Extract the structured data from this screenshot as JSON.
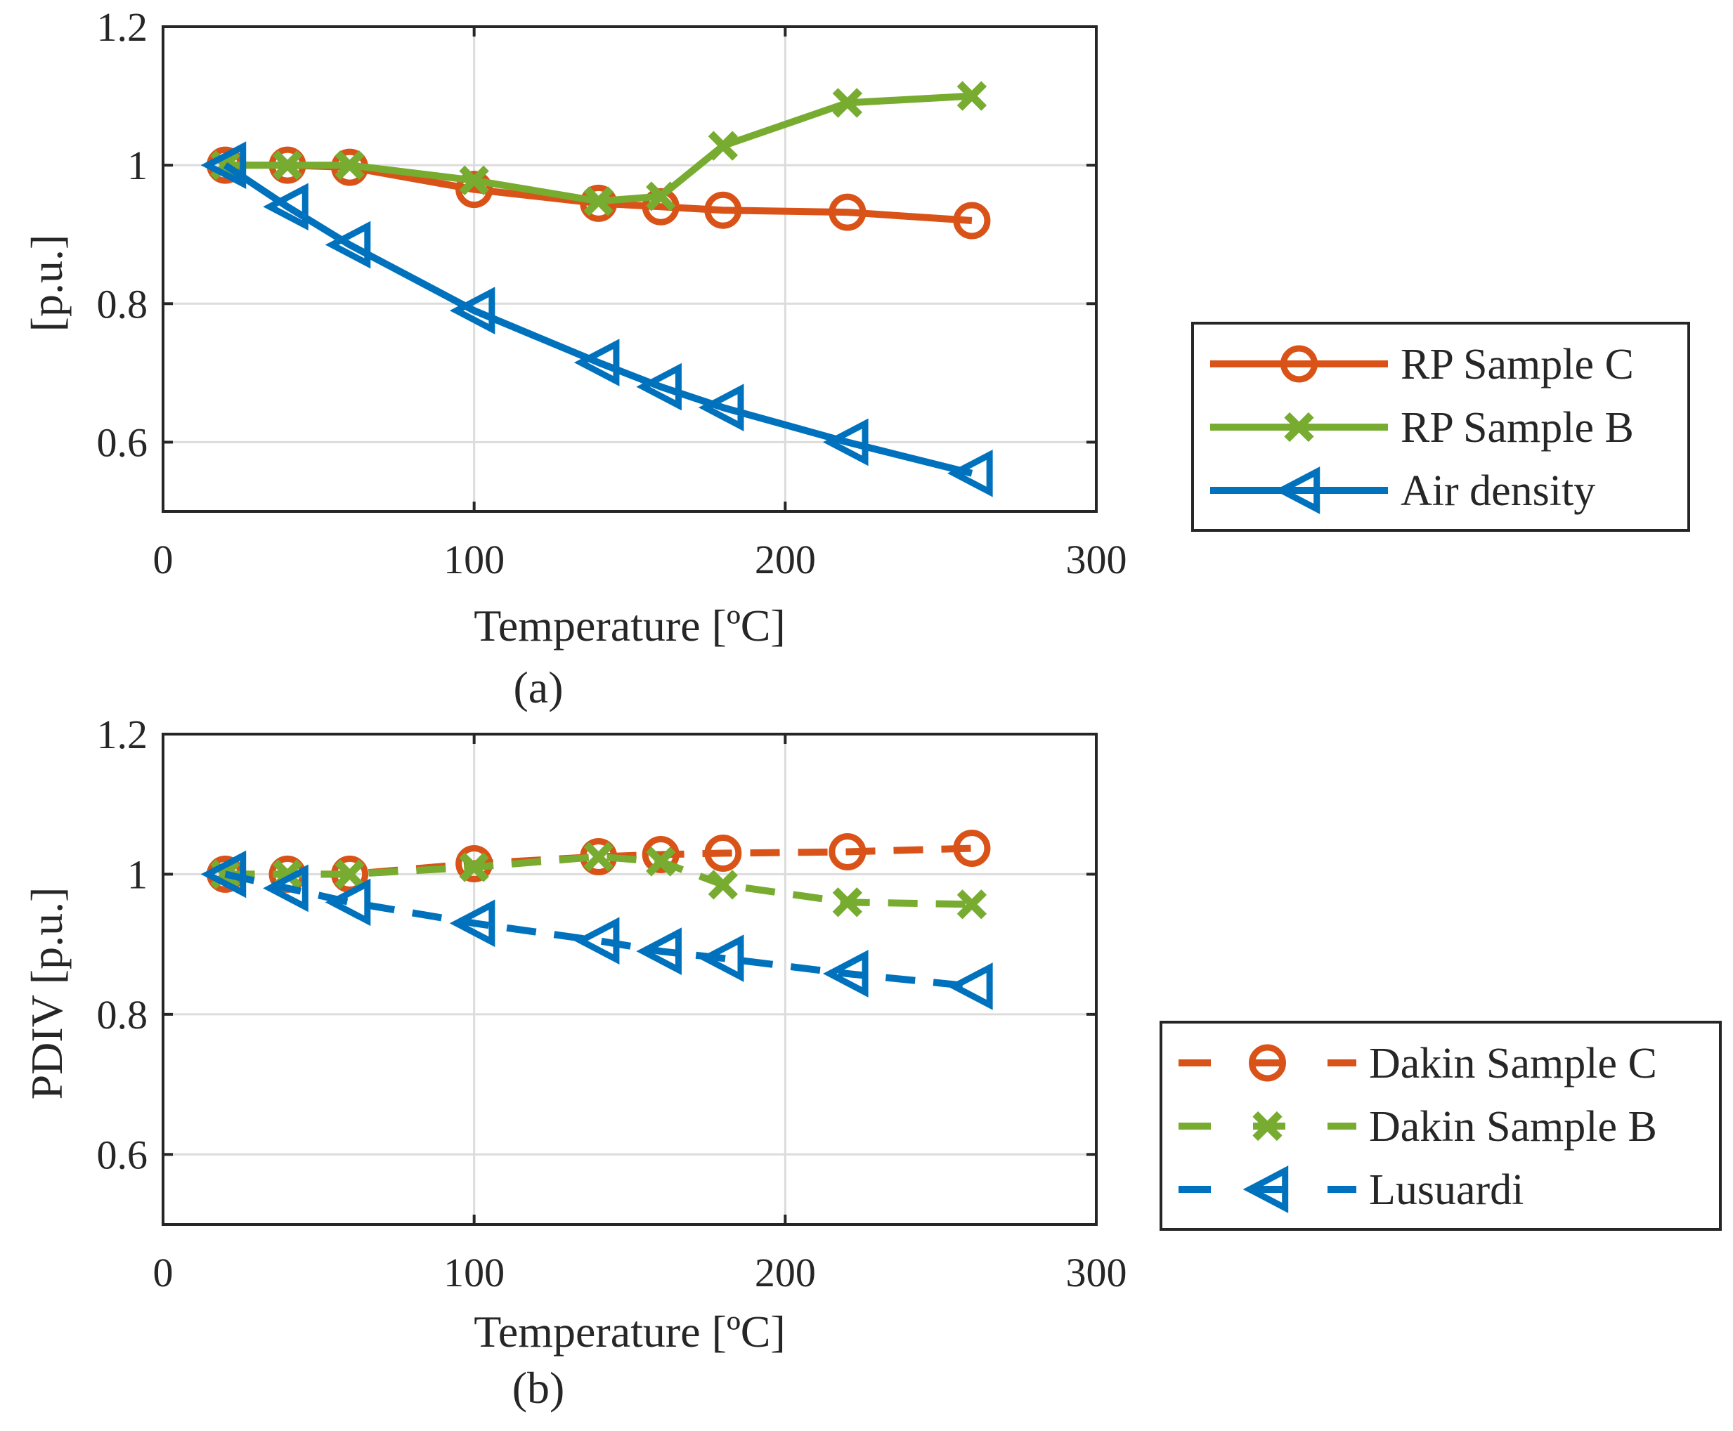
{
  "chart_data": [
    {
      "type": "line",
      "caption": "(a)",
      "xlabel": "Temperature [ºC]",
      "ylabel": "[p.u.]",
      "xlim": [
        0,
        300
      ],
      "ylim": [
        0.5,
        1.2
      ],
      "xticks": [
        "0",
        "100",
        "200",
        "300"
      ],
      "yticks": [
        "0.6",
        "0.8",
        "1",
        "1.2"
      ],
      "grid": true,
      "legend_position": "outside-right",
      "series": [
        {
          "name": "RP Sample C",
          "color": "#D95319",
          "marker": "circle",
          "line_style": "solid",
          "x": [
            20,
            40,
            60,
            100,
            140,
            160,
            180,
            220,
            260
          ],
          "y": [
            1.0,
            1.0,
            0.997,
            0.965,
            0.945,
            0.94,
            0.935,
            0.932,
            0.92
          ]
        },
        {
          "name": "RP Sample B",
          "color": "#77AC30",
          "marker": "x",
          "line_style": "solid",
          "x": [
            20,
            40,
            60,
            100,
            140,
            160,
            180,
            220,
            260
          ],
          "y": [
            1.0,
            1.0,
            1.0,
            0.978,
            0.948,
            0.955,
            1.028,
            1.09,
            1.1
          ]
        },
        {
          "name": "Air density",
          "color": "#0072BD",
          "marker": "triangle-left",
          "line_style": "solid",
          "x": [
            20,
            40,
            60,
            100,
            140,
            160,
            180,
            220,
            260
          ],
          "y": [
            1.0,
            0.94,
            0.885,
            0.79,
            0.715,
            0.68,
            0.65,
            0.6,
            0.555
          ]
        }
      ]
    },
    {
      "type": "line",
      "caption": "(b)",
      "xlabel": "Temperature [ºC]",
      "ylabel": "PDIV [p.u.]",
      "xlim": [
        0,
        300
      ],
      "ylim": [
        0.5,
        1.2
      ],
      "xticks": [
        "0",
        "100",
        "200",
        "300"
      ],
      "yticks": [
        "0.6",
        "0.8",
        "1",
        "1.2"
      ],
      "grid": true,
      "legend_position": "outside-right",
      "series": [
        {
          "name": "Dakin Sample C",
          "color": "#D95319",
          "marker": "circle",
          "line_style": "dashed",
          "x": [
            20,
            40,
            60,
            100,
            140,
            160,
            180,
            220,
            260
          ],
          "y": [
            1.0,
            1.0,
            1.0,
            1.015,
            1.025,
            1.028,
            1.03,
            1.032,
            1.037
          ]
        },
        {
          "name": "Dakin Sample B",
          "color": "#77AC30",
          "marker": "x",
          "line_style": "dashed",
          "x": [
            20,
            40,
            60,
            100,
            140,
            160,
            180,
            220,
            260
          ],
          "y": [
            1.0,
            1.0,
            1.0,
            1.01,
            1.025,
            1.018,
            0.985,
            0.96,
            0.957
          ]
        },
        {
          "name": "Lusuardi",
          "color": "#0072BD",
          "marker": "triangle-left",
          "line_style": "dashed",
          "x": [
            20,
            40,
            60,
            100,
            140,
            160,
            180,
            220,
            260
          ],
          "y": [
            1.0,
            0.98,
            0.96,
            0.93,
            0.905,
            0.89,
            0.88,
            0.858,
            0.84
          ]
        }
      ]
    }
  ]
}
